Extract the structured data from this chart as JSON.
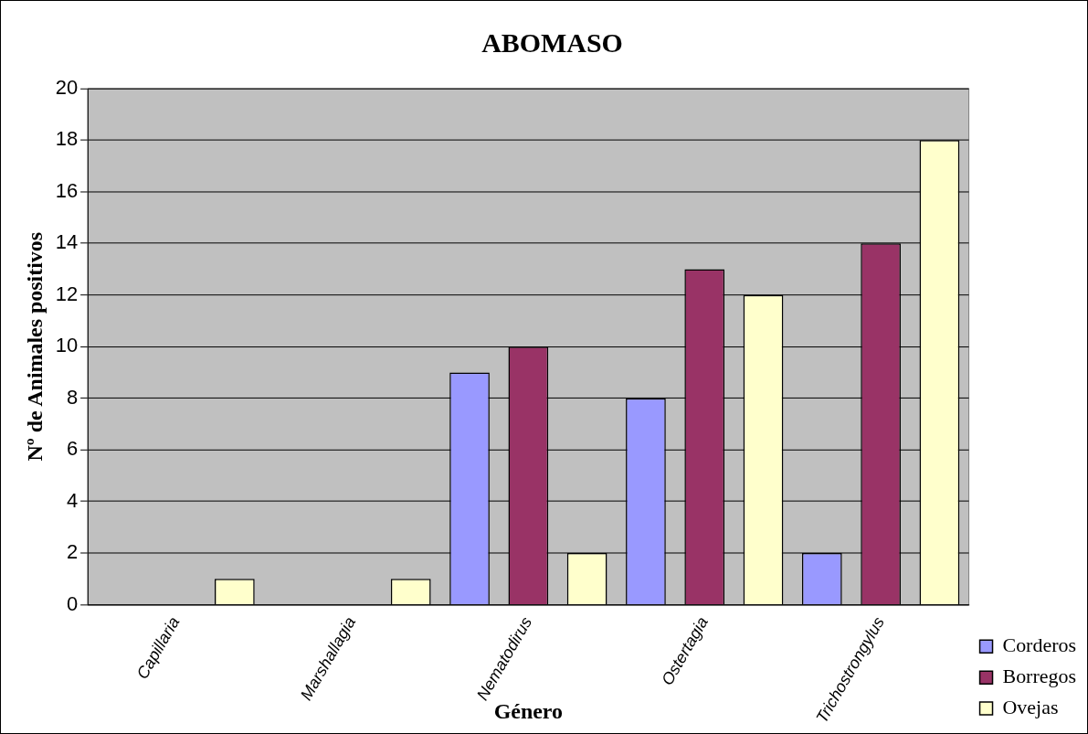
{
  "chart_data": {
    "type": "bar",
    "title": "ABOMASO",
    "xlabel": "Género",
    "ylabel": "Nº de Animales positivos",
    "categories": [
      "Capillaria",
      "Marshallagia",
      "Nematodirus",
      "Ostertagia",
      "Trichostrongylus"
    ],
    "series": [
      {
        "name": "Corderos",
        "color": "#9999ff",
        "values": [
          0,
          0,
          9,
          8,
          2
        ]
      },
      {
        "name": "Borregos",
        "color": "#993366",
        "values": [
          0,
          0,
          10,
          13,
          14
        ]
      },
      {
        "name": "Ovejas",
        "color": "#ffffcc",
        "values": [
          1,
          1,
          2,
          12,
          18
        ]
      }
    ],
    "ylim": [
      0,
      20
    ],
    "yticks": [
      0,
      2,
      4,
      6,
      8,
      10,
      12,
      14,
      16,
      18,
      20
    ],
    "grid": "y",
    "legend": "bottom right"
  }
}
